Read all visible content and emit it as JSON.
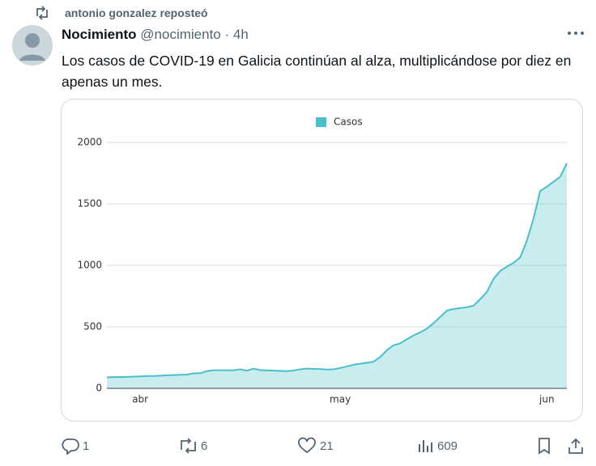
{
  "post": {
    "repost_note": "antonio gonzalez reposteó",
    "author": "Nocimiento",
    "handle": "@nocimiento",
    "separator": "·",
    "time": "4h",
    "text": "Los casos de COVID-19 en Galicia continúan al alza, multiplicándose por diez en apenas un mes.",
    "replies": 1,
    "reposts": 6,
    "likes": 21,
    "views": 609
  },
  "chart_data": {
    "type": "area",
    "categories": [
      null,
      null,
      null,
      null,
      null,
      "abr",
      null,
      null,
      null,
      null,
      null,
      null,
      null,
      null,
      null,
      null,
      null,
      null,
      null,
      null,
      null,
      null,
      null,
      null,
      null,
      null,
      null,
      null,
      null,
      null,
      null,
      null,
      null,
      null,
      null,
      "may",
      null,
      null,
      null,
      null,
      null,
      null,
      null,
      null,
      null,
      null,
      null,
      null,
      null,
      null,
      null,
      null,
      null,
      null,
      null,
      null,
      null,
      null,
      null,
      null,
      null,
      null,
      null,
      null,
      null,
      null,
      "jun",
      null,
      null,
      null
    ],
    "series": [
      {
        "name": "Casos",
        "color": "#4bbfc9",
        "values": [
          90,
          91,
          92,
          93,
          95,
          97,
          100,
          100,
          103,
          106,
          108,
          110,
          112,
          122,
          123,
          140,
          147,
          147,
          147,
          146,
          155,
          143,
          160,
          148,
          146,
          144,
          142,
          140,
          145,
          155,
          160,
          158,
          157,
          153,
          155,
          165,
          178,
          192,
          200,
          208,
          217,
          255,
          310,
          350,
          365,
          400,
          430,
          455,
          485,
          530,
          580,
          632,
          645,
          652,
          660,
          672,
          725,
          783,
          890,
          955,
          990,
          1020,
          1065,
          1200,
          1380,
          1605,
          1640,
          1680,
          1720,
          1830
        ]
      }
    ],
    "ylim": [
      0,
      2000
    ],
    "yticks": [
      0,
      500,
      1000,
      1500,
      2000
    ],
    "grid": true,
    "legend": "top"
  }
}
